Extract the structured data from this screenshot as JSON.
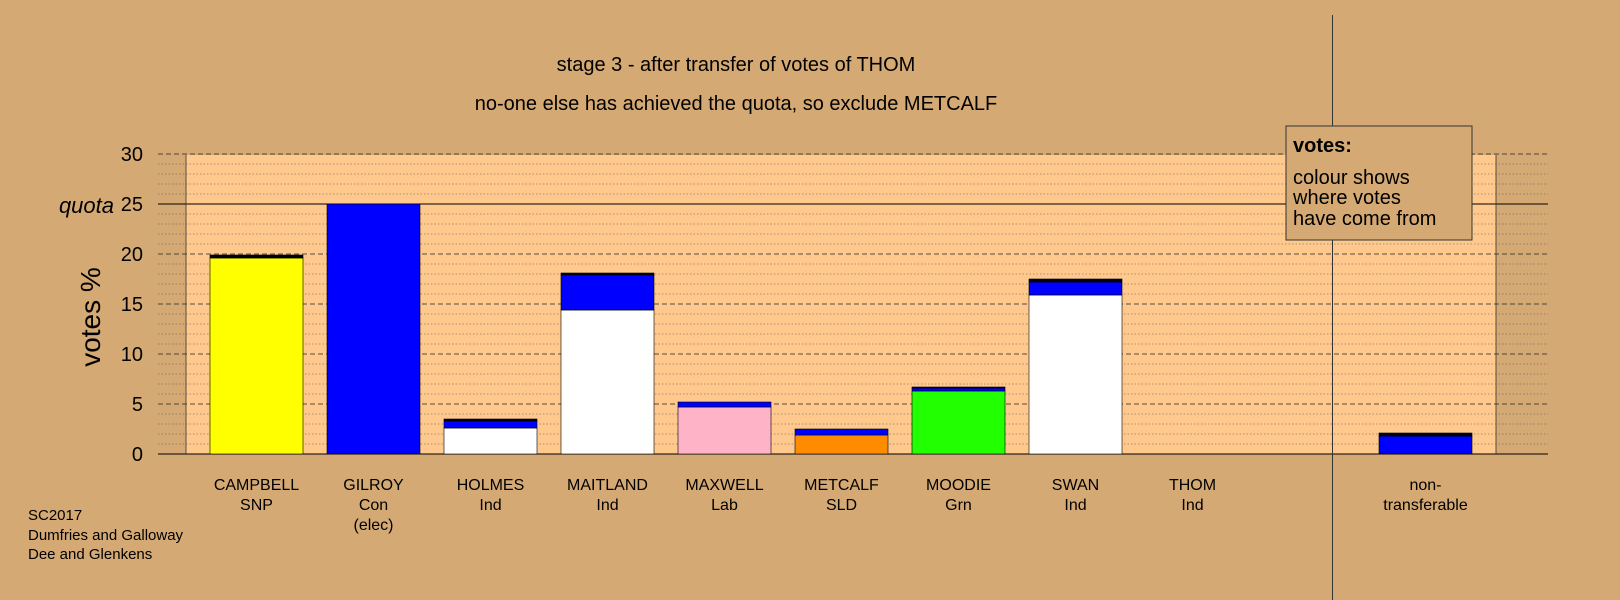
{
  "chart_data": {
    "type": "bar",
    "stacked": true,
    "title": "stage 3 - after transfer of votes of THOM",
    "subtitle": "no-one else has achieved the quota, so exclude METCALF",
    "ylabel": "votes %",
    "quota_label": "quota",
    "quota": 25,
    "ylim": [
      0,
      30
    ],
    "yticks": [
      0,
      5,
      10,
      15,
      20,
      25,
      30
    ],
    "grid": true,
    "legend_position": "top-right",
    "legend": {
      "title": "votes:",
      "lines": [
        "colour shows",
        "where votes",
        "have come from"
      ]
    },
    "footer": [
      "SC2017",
      "Dumfries and Galloway",
      "Dee and Glenkens"
    ],
    "colors": {
      "background": "#d5a974",
      "plot_area": "#ffc98e",
      "SNP": "#ffff00",
      "Con": "#0000ff",
      "Ind": "#ffffff",
      "Lab": "#ffb3c6",
      "SLD": "#ff8c00",
      "Grn": "#22ff00",
      "THOM": "#000000"
    },
    "candidates": [
      {
        "name": "CAMPBELL",
        "sub": [
          "SNP"
        ],
        "segments": [
          {
            "from": "SNP",
            "value": 19.6
          },
          {
            "from": "THOM",
            "value": 0.3
          }
        ]
      },
      {
        "name": "GILROY",
        "sub": [
          "Con",
          "(elec)"
        ],
        "segments": [
          {
            "from": "Con",
            "value": 25.0
          }
        ]
      },
      {
        "name": "HOLMES",
        "sub": [
          "Ind"
        ],
        "segments": [
          {
            "from": "Ind",
            "value": 2.6
          },
          {
            "from": "Con",
            "value": 0.7
          },
          {
            "from": "THOM",
            "value": 0.2
          }
        ]
      },
      {
        "name": "MAITLAND",
        "sub": [
          "Ind"
        ],
        "segments": [
          {
            "from": "Ind",
            "value": 14.4
          },
          {
            "from": "Con",
            "value": 3.5
          },
          {
            "from": "THOM",
            "value": 0.2
          }
        ]
      },
      {
        "name": "MAXWELL",
        "sub": [
          "Lab"
        ],
        "segments": [
          {
            "from": "Lab",
            "value": 4.7
          },
          {
            "from": "Con",
            "value": 0.5
          }
        ]
      },
      {
        "name": "METCALF",
        "sub": [
          "SLD"
        ],
        "segments": [
          {
            "from": "SLD",
            "value": 1.9
          },
          {
            "from": "Con",
            "value": 0.6
          }
        ]
      },
      {
        "name": "MOODIE",
        "sub": [
          "Grn"
        ],
        "segments": [
          {
            "from": "Grn",
            "value": 6.3
          },
          {
            "from": "Con",
            "value": 0.3
          },
          {
            "from": "THOM",
            "value": 0.1
          }
        ]
      },
      {
        "name": "SWAN",
        "sub": [
          "Ind"
        ],
        "segments": [
          {
            "from": "Ind",
            "value": 15.9
          },
          {
            "from": "Con",
            "value": 1.3
          },
          {
            "from": "THOM",
            "value": 0.3
          }
        ]
      },
      {
        "name": "THOM",
        "sub": [
          "Ind"
        ],
        "segments": []
      }
    ],
    "nontransferable": {
      "label": [
        "non-",
        "transferable"
      ],
      "segments": [
        {
          "from": "Con",
          "value": 1.8
        },
        {
          "from": "THOM",
          "value": 0.3
        }
      ]
    }
  }
}
